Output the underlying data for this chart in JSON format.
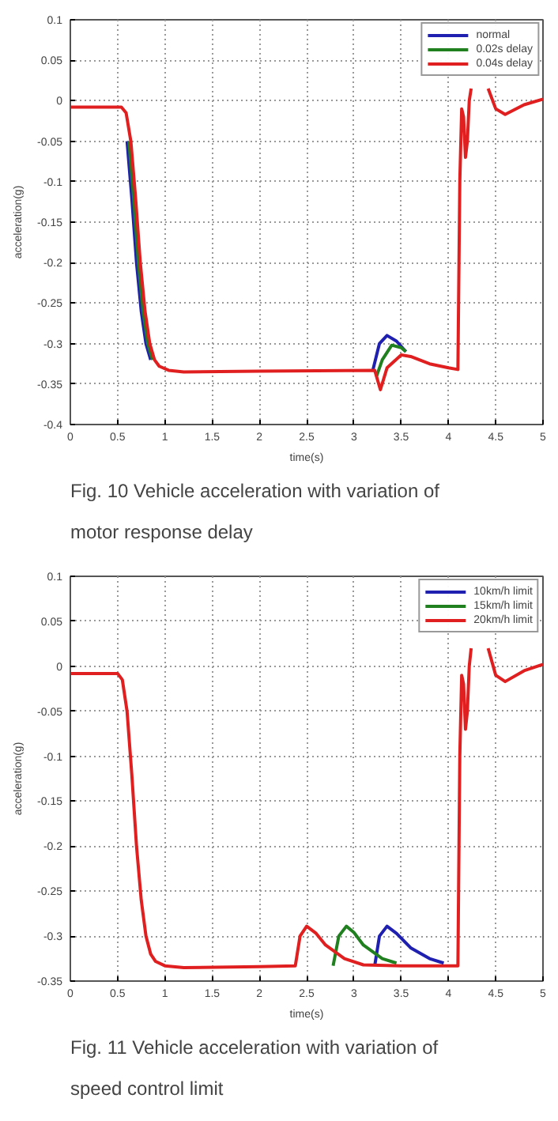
{
  "chart_data": [
    {
      "type": "line",
      "xlabel": "time(s)",
      "ylabel": "acceleration(g)",
      "xlim": [
        0,
        5
      ],
      "ylim": [
        -0.4,
        0.1
      ],
      "xticks": [
        0,
        0.5,
        1,
        1.5,
        2,
        2.5,
        3,
        3.5,
        4,
        4.5,
        5
      ],
      "yticks": [
        -0.4,
        -0.35,
        -0.3,
        -0.25,
        -0.2,
        -0.15,
        -0.1,
        -0.05,
        0,
        0.05,
        0.1
      ],
      "grid": true,
      "legend": "top right",
      "line_style": "solid",
      "annotations": [
        "Fig. 10 Vehicle acceleration with variation of",
        "motor response delay"
      ],
      "series": [
        {
          "name": "normal",
          "color": "#2020b0",
          "x": [
            0.6,
            0.65,
            0.7,
            0.75,
            0.8,
            0.85,
            2.0,
            3.2,
            3.27,
            3.35,
            3.45,
            3.55
          ],
          "values": [
            -0.05,
            -0.12,
            -0.2,
            -0.26,
            -0.3,
            -0.32,
            null,
            -0.333,
            -0.3,
            -0.29,
            -0.297,
            -0.31
          ]
        },
        {
          "name": "0.02s delay",
          "color": "#208020",
          "x": [
            0.62,
            0.67,
            0.72,
            0.77,
            0.82,
            0.87,
            2.0,
            3.24,
            3.3,
            3.4,
            3.5,
            3.55
          ],
          "values": [
            -0.05,
            -0.12,
            -0.2,
            -0.26,
            -0.3,
            -0.32,
            null,
            -0.34,
            -0.32,
            -0.302,
            -0.305,
            -0.31
          ]
        },
        {
          "name": "0.04s delay",
          "color": "#e02020",
          "x": [
            0,
            0.54,
            0.59,
            0.64,
            0.69,
            0.74,
            0.79,
            0.84,
            0.89,
            0.94,
            1.04,
            1.2,
            2,
            3.22,
            3.28,
            3.35,
            3.5,
            3.6,
            3.8,
            4.0,
            4.1,
            4.12,
            4.14,
            4.16,
            4.18,
            4.2,
            4.22,
            4.24,
            4.3,
            4.42,
            4.5,
            4.6,
            4.8,
            5
          ],
          "values": [
            -0.008,
            -0.008,
            -0.015,
            -0.05,
            -0.12,
            -0.2,
            -0.26,
            -0.3,
            -0.32,
            -0.328,
            -0.333,
            -0.335,
            -0.334,
            -0.333,
            -0.357,
            -0.33,
            -0.314,
            -0.316,
            -0.325,
            -0.33,
            -0.332,
            -0.1,
            -0.01,
            -0.02,
            -0.07,
            -0.05,
            0.0,
            0.015,
            null,
            0.015,
            -0.01,
            -0.017,
            -0.005,
            0.002
          ]
        }
      ]
    },
    {
      "type": "line",
      "xlabel": "time(s)",
      "ylabel": "acceleration(g)",
      "xlim": [
        0,
        5
      ],
      "ylim": [
        -0.35,
        0.1
      ],
      "xticks": [
        0,
        0.5,
        1,
        1.5,
        2,
        2.5,
        3,
        3.5,
        4,
        4.5,
        5
      ],
      "yticks": [
        -0.35,
        -0.3,
        -0.25,
        -0.2,
        -0.15,
        -0.1,
        -0.05,
        0,
        0.05,
        0.1
      ],
      "grid": true,
      "legend": "top right",
      "line_style": "solid",
      "annotations": [
        "Fig. 11 Vehicle acceleration with variation of",
        "speed control limit"
      ],
      "series": [
        {
          "name": "10km/h limit",
          "color": "#2020b0",
          "x": [
            3.22,
            3.27,
            3.35,
            3.45,
            3.6,
            3.8,
            3.95
          ],
          "values": [
            -0.333,
            -0.3,
            -0.289,
            -0.297,
            -0.313,
            -0.325,
            -0.33
          ]
        },
        {
          "name": "15km/h limit",
          "color": "#208020",
          "x": [
            2.78,
            2.84,
            2.92,
            3.0,
            3.1,
            3.3,
            3.45
          ],
          "values": [
            -0.333,
            -0.3,
            -0.289,
            -0.296,
            -0.31,
            -0.325,
            -0.33
          ]
        },
        {
          "name": "20km/h limit",
          "color": "#e02020",
          "x": [
            0,
            0.5,
            0.55,
            0.6,
            0.65,
            0.7,
            0.75,
            0.8,
            0.85,
            0.9,
            1.0,
            1.2,
            2,
            2.38,
            2.43,
            2.5,
            2.6,
            2.7,
            2.9,
            3.1,
            3.5,
            4.1,
            4.12,
            4.14,
            4.16,
            4.18,
            4.2,
            4.22,
            4.24,
            4.3,
            4.42,
            4.5,
            4.6,
            4.8,
            5
          ],
          "values": [
            -0.008,
            -0.008,
            -0.015,
            -0.05,
            -0.12,
            -0.2,
            -0.26,
            -0.3,
            -0.32,
            -0.328,
            -0.333,
            -0.335,
            -0.334,
            -0.333,
            -0.3,
            -0.289,
            -0.297,
            -0.31,
            -0.325,
            -0.332,
            -0.333,
            -0.333,
            -0.1,
            -0.01,
            -0.02,
            -0.07,
            -0.05,
            0.0,
            0.02,
            null,
            0.02,
            -0.01,
            -0.017,
            -0.005,
            0.002
          ]
        }
      ]
    }
  ]
}
